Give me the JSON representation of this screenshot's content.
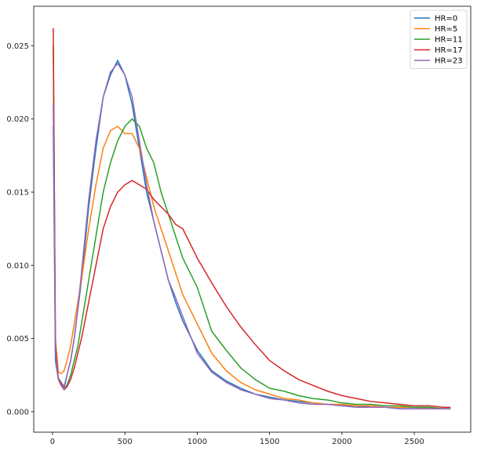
{
  "chart_data": {
    "type": "line",
    "title": "",
    "xlabel": "",
    "ylabel": "",
    "xlim": [
      -130,
      2890
    ],
    "ylim": [
      -0.0014,
      0.0277
    ],
    "xticks": [
      0,
      500,
      1000,
      1500,
      2000,
      2500
    ],
    "xtick_labels": [
      "0",
      "500",
      "1000",
      "1500",
      "2000",
      "2500"
    ],
    "yticks": [
      0.0,
      0.005,
      0.01,
      0.015,
      0.02,
      0.025
    ],
    "ytick_labels": [
      "0.000",
      "0.005",
      "0.010",
      "0.015",
      "0.020",
      "0.025"
    ],
    "grid": false,
    "legend_position": "top-right",
    "x": [
      5,
      20,
      40,
      60,
      80,
      100,
      125,
      150,
      175,
      200,
      250,
      300,
      350,
      400,
      450,
      500,
      550,
      600,
      650,
      700,
      750,
      800,
      850,
      900,
      1000,
      1100,
      1200,
      1300,
      1400,
      1500,
      1600,
      1700,
      1800,
      1900,
      2000,
      2100,
      2200,
      2300,
      2400,
      2500,
      2600,
      2700,
      2750
    ],
    "series": [
      {
        "name": "HR=0",
        "color": "#1f77b4",
        "values": [
          0.0195,
          0.0035,
          0.0022,
          0.002,
          0.0017,
          0.0025,
          0.0035,
          0.005,
          0.007,
          0.009,
          0.014,
          0.018,
          0.0215,
          0.023,
          0.024,
          0.023,
          0.021,
          0.018,
          0.015,
          0.013,
          0.011,
          0.009,
          0.0075,
          0.0062,
          0.0042,
          0.0028,
          0.0021,
          0.0016,
          0.0012,
          0.001,
          0.0008,
          0.0007,
          0.0006,
          0.0005,
          0.0004,
          0.0004,
          0.0003,
          0.0003,
          0.0002,
          0.0002,
          0.0002,
          0.0002,
          0.0002
        ]
      },
      {
        "name": "HR=5",
        "color": "#ff7f0e",
        "values": [
          0.025,
          0.005,
          0.0027,
          0.0026,
          0.0028,
          0.0035,
          0.0045,
          0.006,
          0.0075,
          0.009,
          0.0125,
          0.0155,
          0.018,
          0.0192,
          0.0195,
          0.019,
          0.019,
          0.018,
          0.016,
          0.014,
          0.0125,
          0.011,
          0.0095,
          0.008,
          0.006,
          0.004,
          0.0028,
          0.002,
          0.0015,
          0.0012,
          0.0009,
          0.0008,
          0.0006,
          0.0005,
          0.0005,
          0.0004,
          0.0004,
          0.0003,
          0.0003,
          0.0003,
          0.0002,
          0.0002,
          0.0002
        ]
      },
      {
        "name": "HR=11",
        "color": "#2ca02c",
        "values": [
          0.025,
          0.004,
          0.0023,
          0.002,
          0.0015,
          0.0018,
          0.0025,
          0.0035,
          0.0045,
          0.006,
          0.009,
          0.012,
          0.015,
          0.017,
          0.0185,
          0.0195,
          0.02,
          0.0195,
          0.018,
          0.017,
          0.015,
          0.0135,
          0.012,
          0.0105,
          0.0085,
          0.0055,
          0.0042,
          0.003,
          0.0022,
          0.0016,
          0.0014,
          0.0011,
          0.0009,
          0.0008,
          0.0006,
          0.0005,
          0.0005,
          0.0004,
          0.0004,
          0.0003,
          0.0003,
          0.0002,
          0.0002
        ]
      },
      {
        "name": "HR=17",
        "color": "#d62728",
        "values": [
          0.0262,
          0.0045,
          0.0022,
          0.0018,
          0.0015,
          0.0017,
          0.0022,
          0.003,
          0.004,
          0.005,
          0.0075,
          0.01,
          0.0125,
          0.014,
          0.015,
          0.0155,
          0.0158,
          0.0155,
          0.0152,
          0.0145,
          0.014,
          0.0135,
          0.0128,
          0.0125,
          0.0105,
          0.0088,
          0.0072,
          0.0058,
          0.0046,
          0.0035,
          0.0028,
          0.0022,
          0.0018,
          0.0014,
          0.0011,
          0.0009,
          0.0007,
          0.0006,
          0.0005,
          0.0004,
          0.0004,
          0.0003,
          0.0003
        ]
      },
      {
        "name": "HR=23",
        "color": "#9467bd",
        "values": [
          0.021,
          0.004,
          0.0022,
          0.002,
          0.0015,
          0.0025,
          0.0035,
          0.005,
          0.007,
          0.0095,
          0.0145,
          0.0185,
          0.0215,
          0.0232,
          0.0238,
          0.023,
          0.0215,
          0.0185,
          0.0155,
          0.013,
          0.011,
          0.009,
          0.0078,
          0.0065,
          0.004,
          0.0027,
          0.002,
          0.0015,
          0.0012,
          0.0009,
          0.0008,
          0.0006,
          0.0005,
          0.0005,
          0.0004,
          0.0003,
          0.0003,
          0.0003,
          0.0002,
          0.0002,
          0.0002,
          0.0002,
          0.0002
        ]
      }
    ]
  }
}
